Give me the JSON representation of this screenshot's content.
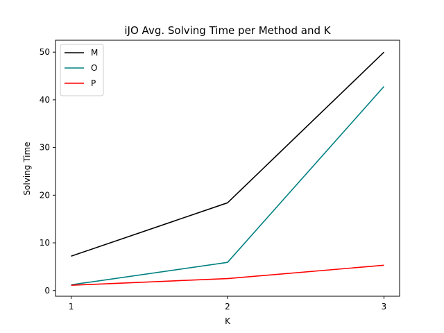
{
  "chart_data": {
    "type": "line",
    "title": "iJO Avg. Solving Time per Method and K",
    "xlabel": "K",
    "ylabel": "Solving Time",
    "x": [
      1,
      2,
      3
    ],
    "xlim": [
      0.9,
      3.1
    ],
    "ylim": [
      -1.2,
      52.5
    ],
    "xticks": [
      1,
      2,
      3
    ],
    "yticks": [
      0,
      10,
      20,
      30,
      40,
      50
    ],
    "grid": false,
    "legend_position": "top-left",
    "series": [
      {
        "name": "M",
        "color": "#000000",
        "values": [
          7.2,
          18.4,
          50.0
        ]
      },
      {
        "name": "O",
        "color": "#008080",
        "values": [
          1.2,
          5.9,
          42.8
        ]
      },
      {
        "name": "P",
        "color": "#ff0000",
        "values": [
          1.1,
          2.5,
          5.3
        ]
      }
    ]
  }
}
